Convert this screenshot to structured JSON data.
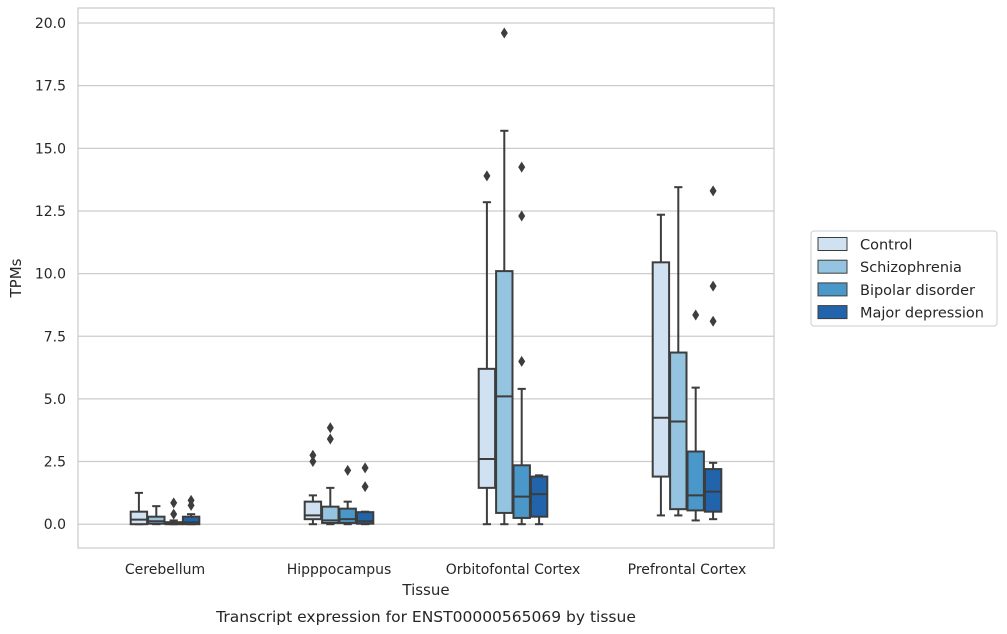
{
  "caption": "Transcript expression for ENST00000565069 by tissue",
  "chart_data": {
    "type": "boxplot",
    "xlabel": "Tissue",
    "ylabel": "TPMs",
    "ylim": [
      -0.95,
      20.6
    ],
    "yticks": [
      "0.0",
      "2.5",
      "5.0",
      "7.5",
      "10.0",
      "12.5",
      "15.0",
      "17.5",
      "20.0"
    ],
    "grid": "horizontal",
    "legend_position": "right",
    "categories": [
      "Cerebellum",
      "Hipppocampus",
      "Orbitofontal Cortex",
      "Prefrontal Cortex"
    ],
    "series": [
      {
        "name": "Control",
        "color": "#d0e1f2",
        "boxes": [
          {
            "whislo": 0.0,
            "q1": 0.0,
            "med": 0.18,
            "q3": 0.5,
            "whishi": 1.25,
            "fliers": []
          },
          {
            "whislo": 0.0,
            "q1": 0.2,
            "med": 0.35,
            "q3": 0.9,
            "whishi": 1.15,
            "fliers": [
              2.5,
              2.75
            ]
          },
          {
            "whislo": 0.0,
            "q1": 1.45,
            "med": 2.6,
            "q3": 6.2,
            "whishi": 12.85,
            "fliers": [
              13.9
            ]
          },
          {
            "whislo": 0.35,
            "q1": 1.9,
            "med": 4.25,
            "q3": 10.45,
            "whishi": 12.35,
            "fliers": []
          }
        ]
      },
      {
        "name": "Schizophrenia",
        "color": "#94c4df",
        "boxes": [
          {
            "whislo": 0.0,
            "q1": 0.02,
            "med": 0.12,
            "q3": 0.3,
            "whishi": 0.72,
            "fliers": []
          },
          {
            "whislo": 0.0,
            "q1": 0.05,
            "med": 0.15,
            "q3": 0.7,
            "whishi": 1.45,
            "fliers": [
              3.4,
              3.85
            ]
          },
          {
            "whislo": 0.0,
            "q1": 0.45,
            "med": 5.1,
            "q3": 10.1,
            "whishi": 15.7,
            "fliers": [
              19.6
            ]
          },
          {
            "whislo": 0.35,
            "q1": 0.6,
            "med": 4.1,
            "q3": 6.85,
            "whishi": 13.45,
            "fliers": []
          }
        ]
      },
      {
        "name": "Bipolar disorder",
        "color": "#4a98c9",
        "boxes": [
          {
            "whislo": 0.0,
            "q1": 0.0,
            "med": 0.02,
            "q3": 0.08,
            "whishi": 0.15,
            "fliers": [
              0.4,
              0.85
            ]
          },
          {
            "whislo": 0.0,
            "q1": 0.05,
            "med": 0.2,
            "q3": 0.62,
            "whishi": 0.9,
            "fliers": [
              2.15
            ]
          },
          {
            "whislo": 0.0,
            "q1": 0.25,
            "med": 1.1,
            "q3": 2.35,
            "whishi": 5.4,
            "fliers": [
              6.5,
              12.3,
              14.25
            ]
          },
          {
            "whislo": 0.15,
            "q1": 0.55,
            "med": 1.15,
            "q3": 2.9,
            "whishi": 5.45,
            "fliers": [
              8.35
            ]
          }
        ]
      },
      {
        "name": "Major depression",
        "color": "#2164ab",
        "boxes": [
          {
            "whislo": 0.0,
            "q1": 0.0,
            "med": 0.08,
            "q3": 0.3,
            "whishi": 0.4,
            "fliers": [
              0.75,
              0.95
            ]
          },
          {
            "whislo": 0.0,
            "q1": 0.02,
            "med": 0.12,
            "q3": 0.48,
            "whishi": 0.5,
            "fliers": [
              1.5,
              2.25
            ]
          },
          {
            "whislo": 0.0,
            "q1": 0.3,
            "med": 1.2,
            "q3": 1.9,
            "whishi": 1.95,
            "fliers": []
          },
          {
            "whislo": 0.2,
            "q1": 0.5,
            "med": 1.3,
            "q3": 2.2,
            "whishi": 2.45,
            "fliers": [
              8.1,
              9.5,
              13.3
            ]
          }
        ]
      }
    ]
  }
}
